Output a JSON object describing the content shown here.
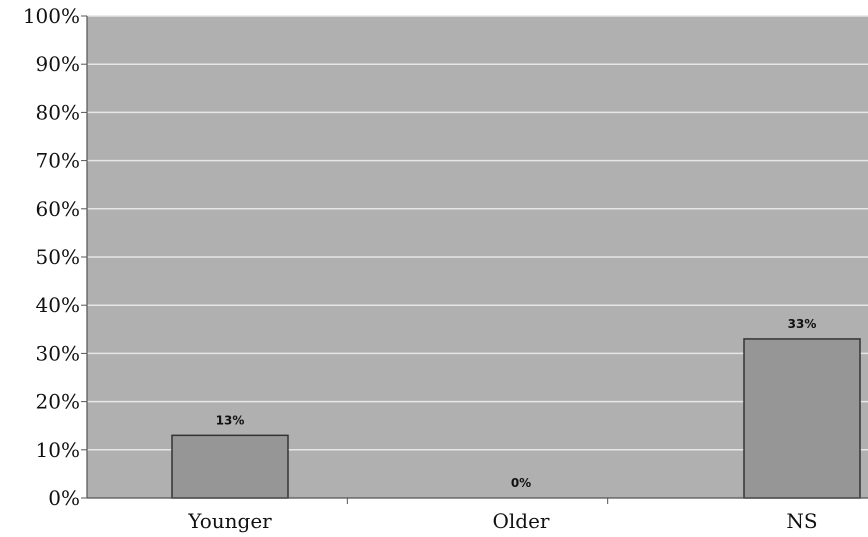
{
  "chart_data": {
    "type": "bar",
    "title": "",
    "xlabel": "",
    "ylabel": "",
    "categories": [
      "Younger",
      "Older",
      "NS"
    ],
    "values": [
      13,
      0,
      33
    ],
    "data_labels": [
      "13%",
      "0%",
      "33%"
    ],
    "ylim": [
      0,
      100
    ],
    "yticks": [
      0,
      10,
      20,
      30,
      40,
      50,
      60,
      70,
      80,
      90,
      100
    ],
    "ytick_labels": [
      "0%",
      "10%",
      "20%",
      "30%",
      "40%",
      "50%",
      "60%",
      "70%",
      "80%",
      "90%",
      "100%"
    ],
    "grid": true,
    "legend": "none",
    "colors": {
      "plot_background": "#b0b0b0",
      "bar_fill": "#969696",
      "bar_stroke": "#333333",
      "gridline": "#e6e6e6",
      "axis": "#555555"
    }
  }
}
